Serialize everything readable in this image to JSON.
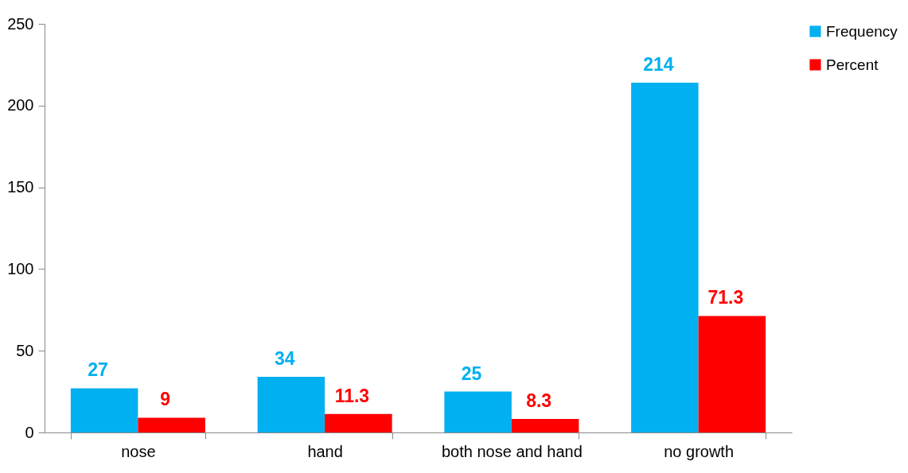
{
  "chart_data": {
    "type": "bar",
    "categories": [
      "nose",
      "hand",
      "both nose and hand",
      "no growth"
    ],
    "series": [
      {
        "name": "Frequency",
        "color": "#00b0f0",
        "values": [
          27,
          34,
          25,
          214
        ]
      },
      {
        "name": "Percent",
        "color": "#ff0000",
        "values": [
          9,
          11.3,
          8.3,
          71.3
        ]
      }
    ],
    "ylim": [
      0,
      250
    ],
    "yticks": [
      0,
      50,
      100,
      150,
      200,
      250
    ],
    "grid": false,
    "legend": "right",
    "data_labels": true
  }
}
